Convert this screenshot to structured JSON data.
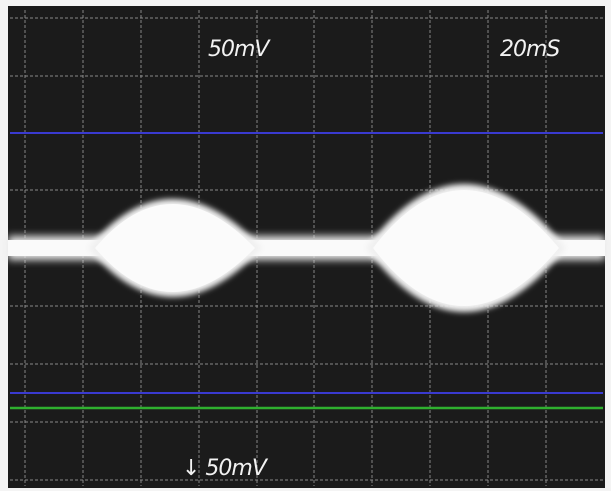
{
  "labels": {
    "volts_per_div": "50mV",
    "time_per_div": "20mS",
    "offset": "↓ 50mV"
  }
}
